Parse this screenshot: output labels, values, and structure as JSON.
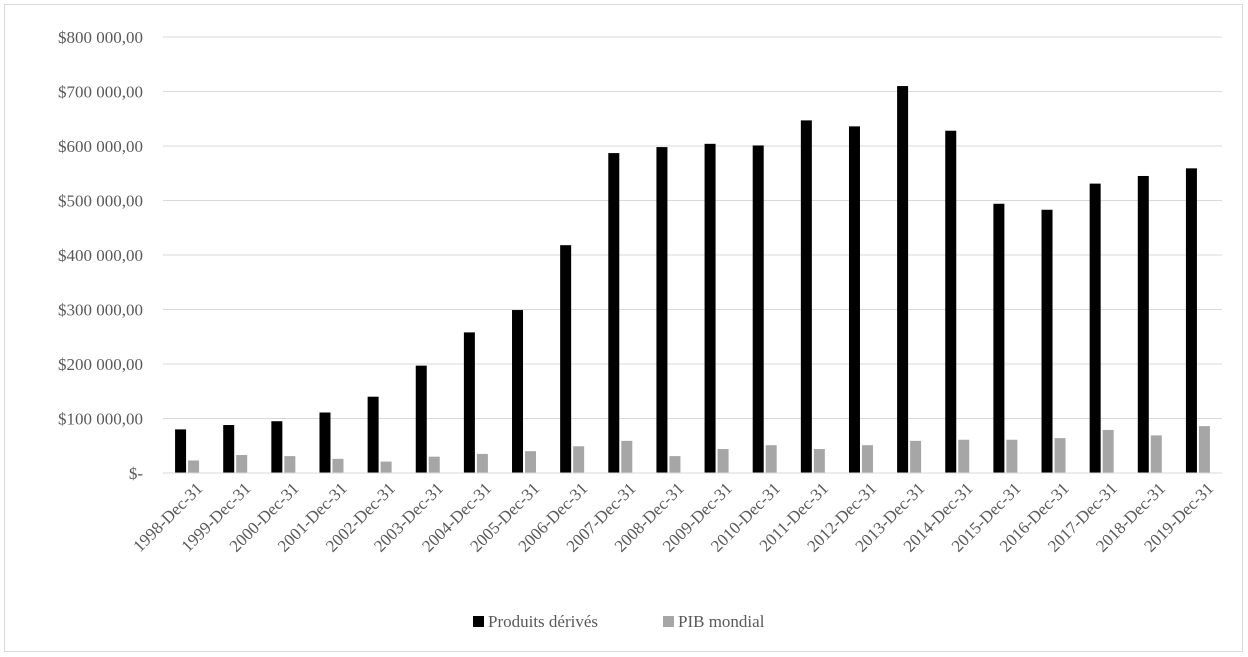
{
  "chart_data": {
    "type": "bar",
    "categories": [
      "1998-Dec-31",
      "1999-Dec-31",
      "2000-Dec-31",
      "2001-Dec-31",
      "2002-Dec-31",
      "2003-Dec-31",
      "2004-Dec-31",
      "2005-Dec-31",
      "2006-Dec-31",
      "2007-Dec-31",
      "2008-Dec-31",
      "2009-Dec-31",
      "2010-Dec-31",
      "2011-Dec-31",
      "2012-Dec-31",
      "2013-Dec-31",
      "2014-Dec-31",
      "2015-Dec-31",
      "2016-Dec-31",
      "2017-Dec-31",
      "2018-Dec-31",
      "2019-Dec-31"
    ],
    "series": [
      {
        "name": "Produits dérivés",
        "color": "#000000",
        "values": [
          80000,
          88000,
          95000,
          111000,
          140000,
          197000,
          258000,
          299000,
          418000,
          587000,
          598000,
          604000,
          601000,
          647000,
          636000,
          710000,
          628000,
          494000,
          483000,
          531000,
          545000,
          559000
        ]
      },
      {
        "name": "PIB mondial",
        "color": "#a6a6a6",
        "values": [
          23000,
          33000,
          31000,
          26000,
          21000,
          30000,
          35000,
          40000,
          49000,
          59000,
          31000,
          44000,
          51000,
          44000,
          51000,
          59000,
          61000,
          61000,
          64000,
          79000,
          69000,
          86000
        ]
      }
    ],
    "y_ticks": [
      {
        "value": 0,
        "label": "$-"
      },
      {
        "value": 100000,
        "label": "$100 000,00"
      },
      {
        "value": 200000,
        "label": "$200 000,00"
      },
      {
        "value": 300000,
        "label": "$300 000,00"
      },
      {
        "value": 400000,
        "label": "$400 000,00"
      },
      {
        "value": 500000,
        "label": "$500 000,00"
      },
      {
        "value": 600000,
        "label": "$600 000,00"
      },
      {
        "value": 700000,
        "label": "$700 000,00"
      },
      {
        "value": 800000,
        "label": "$800 000,00"
      }
    ],
    "ylim": [
      0,
      800000
    ],
    "grid": true,
    "gridline_color": "#d9d9d9",
    "legend_position": "bottom",
    "title": "",
    "xlabel": "",
    "ylabel": ""
  }
}
